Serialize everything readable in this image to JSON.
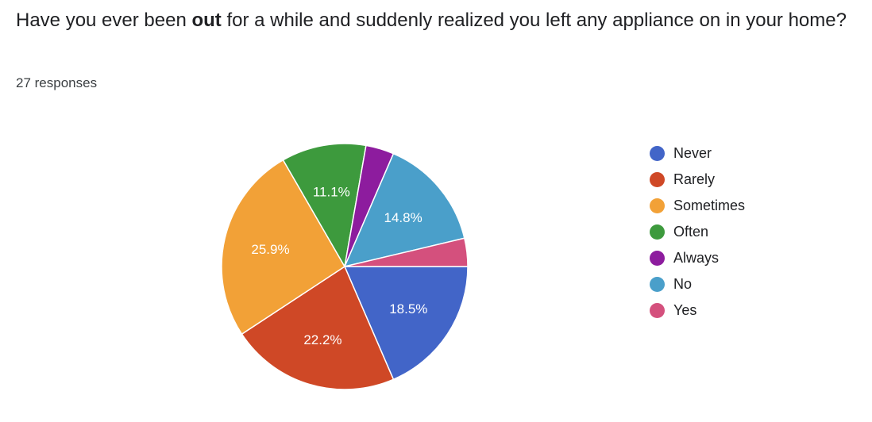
{
  "question": {
    "text_before": "Have you ever been ",
    "text_bold": "out",
    "text_after": " for a while and suddenly realized you left any appliance on in your home?"
  },
  "response_count": "27 responses",
  "chart_data": {
    "type": "pie",
    "total_responses": 27,
    "slices": [
      {
        "label": "Never",
        "count": 5,
        "percent_label": "18.5%",
        "color": "#4265c8"
      },
      {
        "label": "Rarely",
        "count": 6,
        "percent_label": "22.2%",
        "color": "#cf4826"
      },
      {
        "label": "Sometimes",
        "count": 7,
        "percent_label": "25.9%",
        "color": "#f2a137"
      },
      {
        "label": "Often",
        "count": 3,
        "percent_label": "11.1%",
        "color": "#3d9a3d"
      },
      {
        "label": "Always",
        "count": 1,
        "percent_label": "",
        "color": "#8d1c9e"
      },
      {
        "label": "No",
        "count": 4,
        "percent_label": "14.8%",
        "color": "#4a9fca"
      },
      {
        "label": "Yes",
        "count": 1,
        "percent_label": "",
        "color": "#d4507d"
      }
    ],
    "legend_position": "right"
  }
}
